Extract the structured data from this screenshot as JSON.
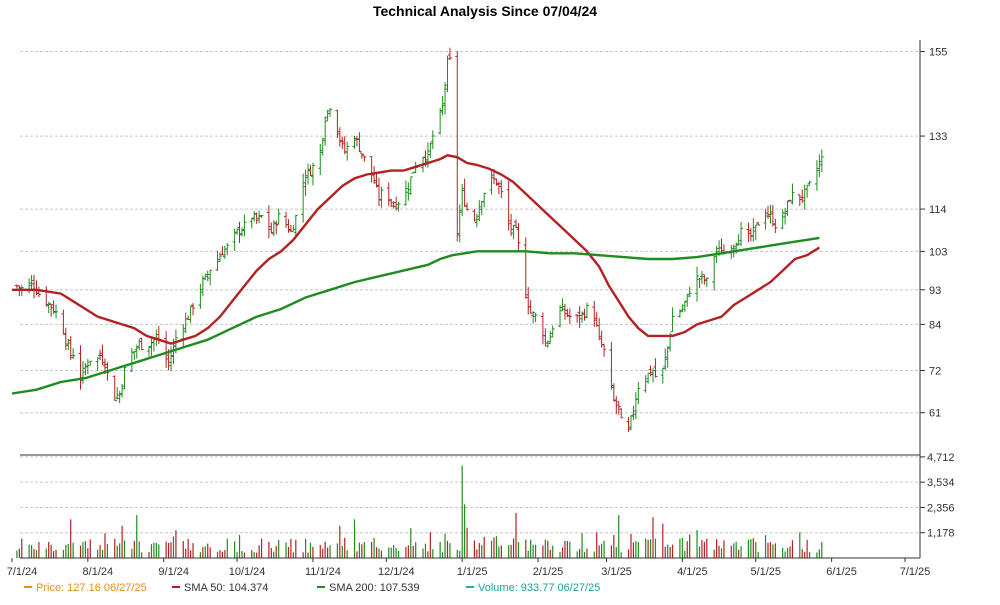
{
  "chart_data": {
    "type": "line",
    "title": "Technical Analysis Since 07/04/24",
    "price_axis": {
      "ticks": [
        61,
        72,
        84,
        93,
        103,
        114,
        133,
        155
      ],
      "ylim": [
        50,
        158
      ]
    },
    "volume_axis": {
      "ticks": [
        "1,178",
        "2,356",
        "3,534",
        "4,712"
      ],
      "values": [
        1178,
        2356,
        3534,
        4712
      ],
      "ylim": [
        0,
        4800
      ]
    },
    "x_ticks": [
      "7/1/24",
      "8/1/24",
      "9/1/24",
      "10/1/24",
      "11/1/24",
      "12/1/24",
      "1/1/25",
      "2/1/25",
      "3/1/25",
      "4/1/25",
      "5/1/25",
      "6/1/25",
      "7/1/25"
    ],
    "x_range_days": [
      0,
      365
    ],
    "price_anchors": [
      [
        2,
        94
      ],
      [
        5,
        93
      ],
      [
        8,
        95
      ],
      [
        11,
        92
      ],
      [
        14,
        90
      ],
      [
        17,
        88
      ],
      [
        20,
        85
      ],
      [
        22,
        80
      ],
      [
        24,
        76
      ],
      [
        26,
        77
      ],
      [
        28,
        70
      ],
      [
        30,
        73
      ],
      [
        32,
        75
      ],
      [
        34,
        74
      ],
      [
        36,
        76
      ],
      [
        38,
        74
      ],
      [
        40,
        68
      ],
      [
        42,
        65
      ],
      [
        44,
        66
      ],
      [
        46,
        72
      ],
      [
        48,
        76
      ],
      [
        50,
        77
      ],
      [
        52,
        79
      ],
      [
        54,
        78
      ],
      [
        56,
        79
      ],
      [
        58,
        80
      ],
      [
        60,
        80
      ],
      [
        62,
        76
      ],
      [
        64,
        74
      ],
      [
        66,
        78
      ],
      [
        68,
        83
      ],
      [
        70,
        84
      ],
      [
        72,
        86
      ],
      [
        74,
        89
      ],
      [
        76,
        92
      ],
      [
        78,
        95
      ],
      [
        80,
        97
      ],
      [
        82,
        100
      ],
      [
        84,
        101
      ],
      [
        86,
        103
      ],
      [
        88,
        104
      ],
      [
        90,
        106
      ],
      [
        92,
        108
      ],
      [
        94,
        109
      ],
      [
        96,
        110
      ],
      [
        98,
        112
      ],
      [
        100,
        111
      ],
      [
        102,
        112
      ],
      [
        104,
        110
      ],
      [
        106,
        108
      ],
      [
        108,
        111
      ],
      [
        110,
        113
      ],
      [
        112,
        110
      ],
      [
        114,
        108
      ],
      [
        116,
        112
      ],
      [
        118,
        119
      ],
      [
        120,
        123
      ],
      [
        122,
        124
      ],
      [
        124,
        126
      ],
      [
        126,
        129
      ],
      [
        128,
        138
      ],
      [
        130,
        141
      ],
      [
        132,
        137
      ],
      [
        134,
        132
      ],
      [
        136,
        129
      ],
      [
        138,
        131
      ],
      [
        140,
        133
      ],
      [
        142,
        130
      ],
      [
        144,
        127
      ],
      [
        146,
        125
      ],
      [
        148,
        121
      ],
      [
        150,
        117
      ],
      [
        152,
        119
      ],
      [
        154,
        117
      ],
      [
        156,
        115
      ],
      [
        158,
        116
      ],
      [
        160,
        118
      ],
      [
        162,
        120
      ],
      [
        164,
        124
      ],
      [
        166,
        127
      ],
      [
        168,
        128
      ],
      [
        170,
        128
      ],
      [
        172,
        133
      ],
      [
        174,
        136
      ],
      [
        176,
        141
      ],
      [
        178,
        152
      ],
      [
        180,
        153
      ],
      [
        181,
        120
      ],
      [
        182,
        108
      ],
      [
        184,
        118
      ],
      [
        186,
        114
      ],
      [
        188,
        110
      ],
      [
        190,
        113
      ],
      [
        192,
        117
      ],
      [
        194,
        120
      ],
      [
        196,
        122
      ],
      [
        198,
        121
      ],
      [
        200,
        118
      ],
      [
        202,
        111
      ],
      [
        204,
        109
      ],
      [
        206,
        108
      ],
      [
        208,
        101
      ],
      [
        210,
        92
      ],
      [
        212,
        87
      ],
      [
        214,
        86
      ],
      [
        216,
        85
      ],
      [
        218,
        79
      ],
      [
        220,
        81
      ],
      [
        222,
        86
      ],
      [
        224,
        88
      ],
      [
        226,
        87
      ],
      [
        228,
        86
      ],
      [
        230,
        85
      ],
      [
        232,
        86
      ],
      [
        234,
        87
      ],
      [
        236,
        89
      ],
      [
        238,
        86
      ],
      [
        240,
        80
      ],
      [
        242,
        77
      ],
      [
        244,
        70
      ],
      [
        246,
        64
      ],
      [
        248,
        62
      ],
      [
        250,
        55
      ],
      [
        252,
        56
      ],
      [
        254,
        62
      ],
      [
        256,
        68
      ],
      [
        258,
        70
      ],
      [
        260,
        71
      ],
      [
        262,
        72
      ],
      [
        264,
        69
      ],
      [
        266,
        72
      ],
      [
        268,
        78
      ],
      [
        270,
        86
      ],
      [
        272,
        87
      ],
      [
        274,
        88
      ],
      [
        276,
        91
      ],
      [
        278,
        95
      ],
      [
        280,
        96
      ],
      [
        282,
        96
      ],
      [
        284,
        95
      ],
      [
        286,
        101
      ],
      [
        288,
        103
      ],
      [
        290,
        103
      ],
      [
        292,
        102
      ],
      [
        294,
        104
      ],
      [
        296,
        106
      ],
      [
        298,
        108
      ],
      [
        300,
        106
      ],
      [
        302,
        107
      ],
      [
        304,
        109
      ],
      [
        306,
        112
      ],
      [
        308,
        113
      ],
      [
        310,
        112
      ],
      [
        312,
        110
      ],
      [
        314,
        111
      ],
      [
        316,
        113
      ],
      [
        318,
        117
      ],
      [
        320,
        118
      ],
      [
        322,
        117
      ],
      [
        324,
        118
      ],
      [
        326,
        120
      ],
      [
        328,
        123
      ],
      [
        330,
        126
      ],
      [
        331,
        127
      ]
    ],
    "series": [
      {
        "name": "Price",
        "legend_label": "Price: 127.16  06/27/25",
        "color": "#e2901a"
      },
      {
        "name": "SMA 50",
        "legend_label": "SMA 50: 104.374",
        "color": "#b22222",
        "points": [
          [
            0,
            93
          ],
          [
            10,
            93
          ],
          [
            20,
            92
          ],
          [
            25,
            90
          ],
          [
            30,
            88
          ],
          [
            35,
            86
          ],
          [
            40,
            85
          ],
          [
            45,
            84
          ],
          [
            50,
            83
          ],
          [
            55,
            81
          ],
          [
            60,
            80
          ],
          [
            65,
            79
          ],
          [
            70,
            80
          ],
          [
            75,
            81
          ],
          [
            80,
            83
          ],
          [
            85,
            86
          ],
          [
            90,
            90
          ],
          [
            95,
            94
          ],
          [
            100,
            98
          ],
          [
            105,
            101
          ],
          [
            110,
            103
          ],
          [
            115,
            106
          ],
          [
            120,
            110
          ],
          [
            125,
            114
          ],
          [
            130,
            117
          ],
          [
            135,
            120
          ],
          [
            140,
            122
          ],
          [
            145,
            123
          ],
          [
            150,
            123.5
          ],
          [
            155,
            124
          ],
          [
            160,
            124
          ],
          [
            165,
            125
          ],
          [
            170,
            126
          ],
          [
            175,
            127
          ],
          [
            178,
            128
          ],
          [
            182,
            127.5
          ],
          [
            186,
            126
          ],
          [
            190,
            125.5
          ],
          [
            195,
            124.5
          ],
          [
            200,
            123
          ],
          [
            205,
            121
          ],
          [
            210,
            118
          ],
          [
            215,
            115
          ],
          [
            220,
            112
          ],
          [
            225,
            109
          ],
          [
            230,
            106
          ],
          [
            235,
            103
          ],
          [
            240,
            99
          ],
          [
            244,
            94
          ],
          [
            248,
            90
          ],
          [
            252,
            86
          ],
          [
            256,
            83
          ],
          [
            260,
            81
          ],
          [
            265,
            81
          ],
          [
            270,
            81
          ],
          [
            275,
            82
          ],
          [
            280,
            84
          ],
          [
            285,
            85
          ],
          [
            290,
            86
          ],
          [
            295,
            89
          ],
          [
            300,
            91
          ],
          [
            305,
            93
          ],
          [
            310,
            95
          ],
          [
            315,
            98
          ],
          [
            320,
            101
          ],
          [
            325,
            102
          ],
          [
            330,
            104
          ]
        ]
      },
      {
        "name": "SMA 200",
        "legend_label": "SMA 200: 107.539",
        "color": "#1e8c1e",
        "points": [
          [
            0,
            66
          ],
          [
            10,
            67
          ],
          [
            20,
            69
          ],
          [
            30,
            70
          ],
          [
            40,
            72
          ],
          [
            50,
            74
          ],
          [
            60,
            76
          ],
          [
            70,
            78
          ],
          [
            80,
            80
          ],
          [
            90,
            83
          ],
          [
            100,
            86
          ],
          [
            110,
            88
          ],
          [
            120,
            91
          ],
          [
            130,
            93
          ],
          [
            140,
            95
          ],
          [
            150,
            96.5
          ],
          [
            160,
            98
          ],
          [
            170,
            99.5
          ],
          [
            175,
            101
          ],
          [
            180,
            102
          ],
          [
            185,
            102.5
          ],
          [
            190,
            103
          ],
          [
            200,
            103
          ],
          [
            210,
            103
          ],
          [
            220,
            102.5
          ],
          [
            230,
            102.5
          ],
          [
            240,
            102
          ],
          [
            250,
            101.5
          ],
          [
            260,
            101
          ],
          [
            270,
            101
          ],
          [
            280,
            101.5
          ],
          [
            290,
            102.5
          ],
          [
            300,
            103.5
          ],
          [
            310,
            104.5
          ],
          [
            320,
            105.5
          ],
          [
            330,
            106.5
          ]
        ]
      },
      {
        "name": "Volume",
        "legend_label": "Volume: 933.77  06/27/25",
        "color": "#20b2aa"
      }
    ],
    "volume_spikes": [
      [
        24,
        1800
      ],
      [
        51,
        2000
      ],
      [
        103,
        1700
      ],
      [
        134,
        1500
      ],
      [
        140,
        1800
      ],
      [
        171,
        1200
      ],
      [
        178,
        800
      ],
      [
        184,
        4300
      ],
      [
        185,
        2500
      ],
      [
        202,
        1600
      ],
      [
        206,
        2100
      ],
      [
        222,
        1700
      ],
      [
        244,
        1900
      ],
      [
        248,
        2000
      ],
      [
        262,
        1900
      ],
      [
        266,
        1600
      ],
      [
        280,
        1300
      ],
      [
        300,
        1100
      ],
      [
        322,
        1200
      ]
    ]
  }
}
